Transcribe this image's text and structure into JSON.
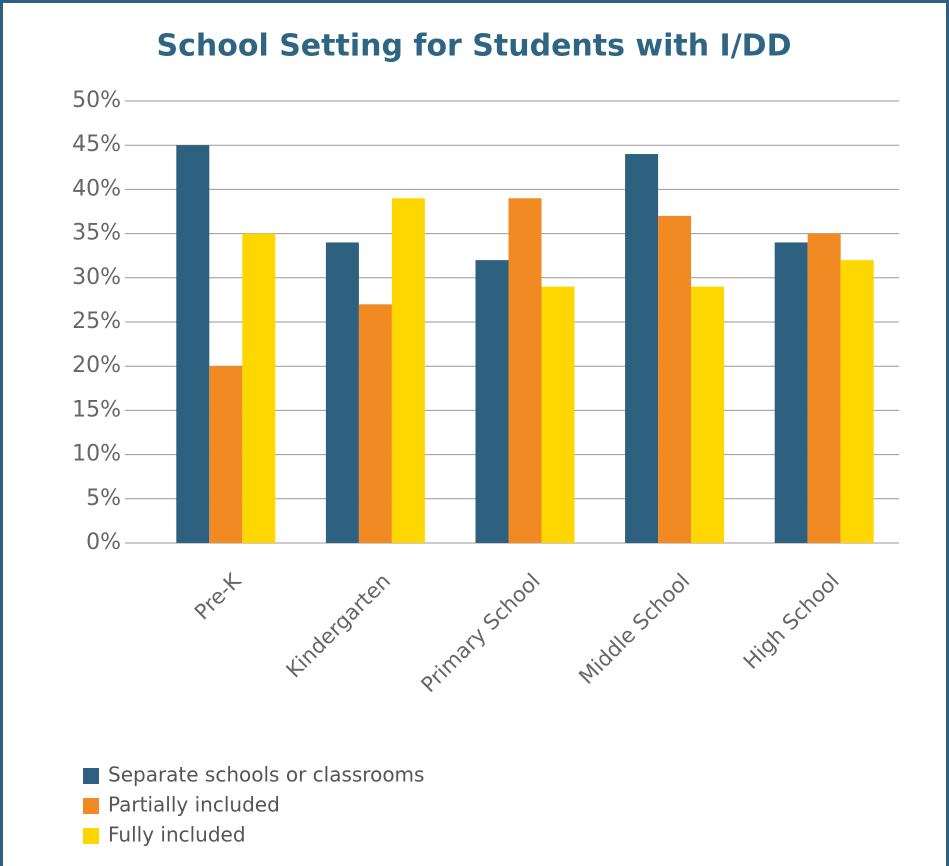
{
  "chart_data": {
    "type": "bar",
    "title": "School Setting for Students with I/DD",
    "categories": [
      "Pre-K",
      "Kindergarten",
      "Primary School",
      "Middle School",
      "High School"
    ],
    "series": [
      {
        "name": "Separate schools or classrooms",
        "color": "#2e6080",
        "values": [
          45,
          34,
          32,
          44,
          34
        ]
      },
      {
        "name": "Partially included",
        "color": "#f28a24",
        "values": [
          20,
          27,
          39,
          37,
          35
        ]
      },
      {
        "name": "Fully included",
        "color": "#ffd700",
        "values": [
          35,
          39,
          29,
          29,
          32
        ]
      }
    ],
    "ylim": [
      0,
      50
    ],
    "yticks": [
      {
        "value": 0,
        "label": "0%"
      },
      {
        "value": 5,
        "label": "5%"
      },
      {
        "value": 10,
        "label": "10%"
      },
      {
        "value": 15,
        "label": "15%"
      },
      {
        "value": 20,
        "label": "20%"
      },
      {
        "value": 25,
        "label": "25%"
      },
      {
        "value": 30,
        "label": "30%"
      },
      {
        "value": 35,
        "label": "35%"
      },
      {
        "value": 40,
        "label": "40%"
      },
      {
        "value": 45,
        "label": "45%"
      },
      {
        "value": 50,
        "label": "50%"
      }
    ],
    "grid": true
  }
}
